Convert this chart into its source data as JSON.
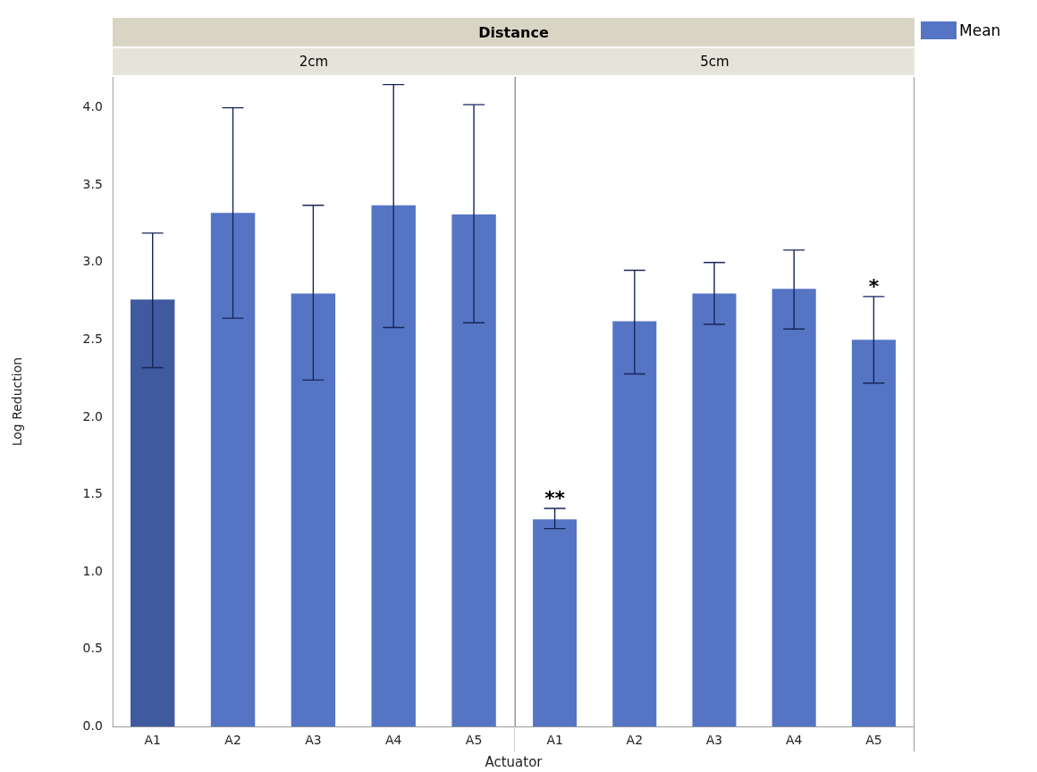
{
  "chart_data": [
    {
      "type": "bar",
      "title": "2cm",
      "annotations": [
        "Distance"
      ],
      "xlabel": "Actuator",
      "ylabel": "Log Reduction",
      "categories": [
        "A1",
        "A2",
        "A3",
        "A4",
        "A5"
      ],
      "series": [
        {
          "colors": [
            "#3f5a9e",
            "#5575c4",
            "#5575c4",
            "#5575c4",
            "#5575c4"
          ],
          "values": [
            2.76,
            3.32,
            2.8,
            3.37,
            3.31
          ],
          "errors": [
            [
              2.32,
              3.19
            ],
            [
              2.64,
              4.0
            ],
            [
              2.24,
              3.37
            ],
            [
              2.58,
              4.15
            ],
            [
              2.61,
              4.02
            ]
          ]
        }
      ],
      "ylim": [
        0,
        4.2
      ],
      "yticks": [
        {
          "value": 0,
          "label": "0.0"
        },
        {
          "value": 0.5,
          "label": "0.5"
        },
        {
          "value": 1,
          "label": "1.0"
        },
        {
          "value": 1.5,
          "label": "1.5"
        },
        {
          "value": 2,
          "label": "2.0"
        },
        {
          "value": 2.5,
          "label": "2.5"
        },
        {
          "value": 3,
          "label": "3.0"
        },
        {
          "value": 3.5,
          "label": "3.5"
        },
        {
          "value": 4,
          "label": "4.0"
        }
      ],
      "grid": false,
      "legend": false
    },
    {
      "type": "bar",
      "title": "5cm",
      "categories": [
        "A1",
        "A2",
        "A3",
        "A4",
        "A5"
      ],
      "series": [
        {
          "name": "Mean",
          "color": "#5575c4",
          "values": [
            1.34,
            2.62,
            2.8,
            2.83,
            2.5
          ],
          "errors": [
            [
              1.28,
              1.41
            ],
            [
              2.28,
              2.95
            ],
            [
              2.6,
              3.0
            ],
            [
              2.57,
              3.08
            ],
            [
              2.22,
              2.78
            ]
          ]
        }
      ],
      "annotations": [
        {
          "text": "**",
          "x": "A1",
          "y": 1.41
        },
        {
          "text": "*",
          "x": "A5",
          "y": 2.78
        }
      ],
      "ylim": [
        0,
        4.2
      ],
      "tick_labels": "x",
      "grid": false,
      "legend": "top right"
    }
  ]
}
